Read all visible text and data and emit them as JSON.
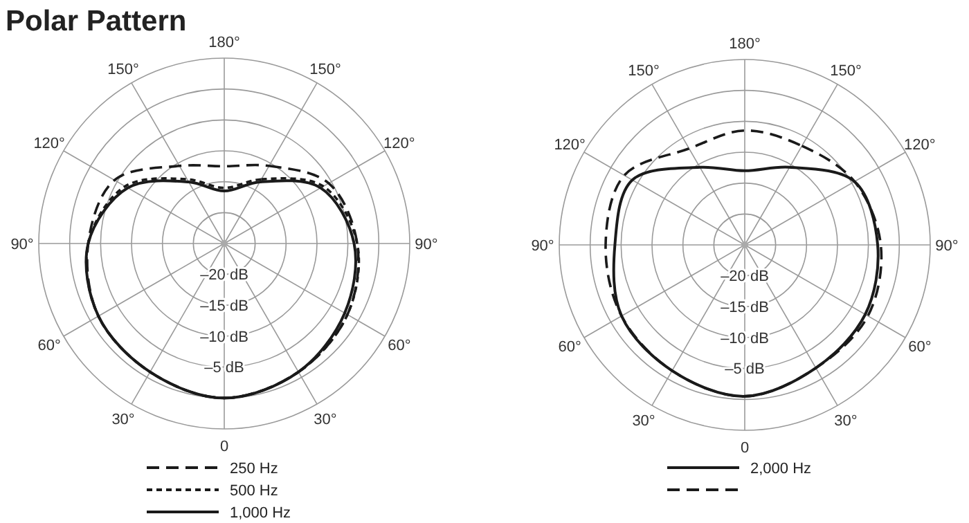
{
  "chart_data": [
    {
      "type": "radar",
      "title": "Polar Pattern",
      "categories": [
        "180°",
        "150°",
        "120°",
        "90°",
        "60°",
        "30°",
        "0",
        "30°",
        "60°",
        "90°",
        "120°",
        "150°"
      ],
      "ylim": [
        -25,
        5
      ],
      "yticks": [
        {
          "value": -20,
          "label": "–20 dB"
        },
        {
          "value": -15,
          "label": "–15 dB"
        },
        {
          "value": -10,
          "label": "–10 dB"
        },
        {
          "value": -5,
          "label": "–5 dB"
        }
      ],
      "grid": true,
      "legend": "bottom",
      "series": [
        {
          "name": "250 Hz",
          "color": "#1a1a1a",
          "line_style": "dashed",
          "values": [
            -12.5,
            -10.5,
            -5.5,
            -3.5,
            -2,
            -1,
            0,
            -1,
            -1.5,
            -3,
            -4.5,
            -10.5
          ]
        },
        {
          "name": "500 Hz",
          "color": "#1a1a1a",
          "line_style": "dotted",
          "values": [
            -16,
            -13,
            -6.5,
            -3.5,
            -2,
            -1,
            0,
            -1,
            -1.5,
            -3,
            -6.5,
            -13
          ]
        },
        {
          "name": "1,000 Hz",
          "color": "#1a1a1a",
          "line_style": "solid",
          "values": [
            -16.5,
            -13.5,
            -7,
            -4,
            -2.5,
            -1,
            0,
            -1,
            -1.5,
            -3,
            -7,
            -13.5
          ]
        }
      ]
    },
    {
      "type": "radar",
      "categories": [
        "180°",
        "150°",
        "120°",
        "90°",
        "60°",
        "30°",
        "0",
        "30°",
        "60°",
        "90°",
        "120°",
        "150°"
      ],
      "ylim": [
        -25,
        5
      ],
      "yticks": [
        {
          "value": -20,
          "label": "–20 dB"
        },
        {
          "value": -15,
          "label": "–15 dB"
        },
        {
          "value": -10,
          "label": "–10 dB"
        },
        {
          "value": -5,
          "label": "–5 dB"
        }
      ],
      "grid": true,
      "legend": "bottom",
      "series": [
        {
          "name": "2,000 Hz",
          "color": "#1a1a1a",
          "line_style": "solid",
          "values": [
            -13,
            -10.5,
            -4.5,
            -3.5,
            -2.5,
            -2,
            -0.5,
            -1.5,
            -2,
            -4,
            -4,
            -10.5
          ]
        },
        {
          "color": "#1a1a1a",
          "line_style": "dashed",
          "values": [
            -6.5,
            -6.5,
            -4.5,
            -3,
            -2,
            -2,
            -0.5,
            -1.5,
            -2,
            -2.5,
            -2.5,
            -7
          ]
        }
      ]
    }
  ]
}
